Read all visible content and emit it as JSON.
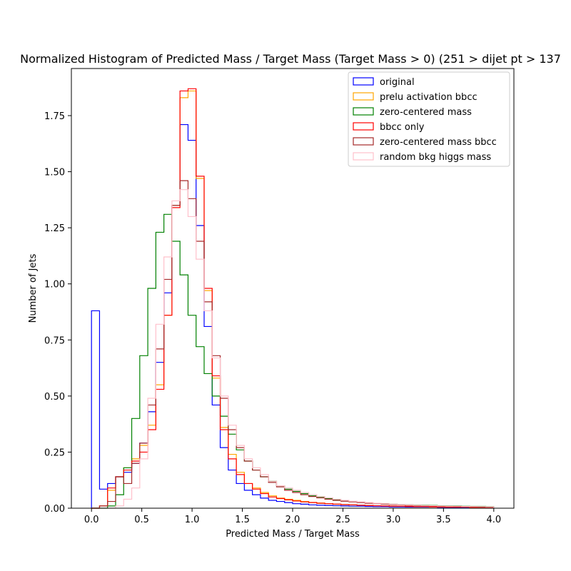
{
  "chart_data": {
    "type": "histogram-step",
    "title": "Normalized Histogram of Predicted Mass / Target Mass (Target Mass > 0) (251 > dijet pt > 137",
    "xlabel": "Predicted Mass / Target Mass",
    "ylabel": "Number of Jets",
    "xlim": [
      -0.2,
      4.2
    ],
    "ylim": [
      0,
      1.96
    ],
    "xticks": [
      0.0,
      0.5,
      1.0,
      1.5,
      2.0,
      2.5,
      3.0,
      3.5,
      4.0
    ],
    "xtick_labels": [
      "0.0",
      "0.5",
      "1.0",
      "1.5",
      "2.0",
      "2.5",
      "3.0",
      "3.5",
      "4.0"
    ],
    "yticks": [
      0.0,
      0.25,
      0.5,
      0.75,
      1.0,
      1.25,
      1.5,
      1.75
    ],
    "ytick_labels": [
      "0.00",
      "0.25",
      "0.50",
      "0.75",
      "1.00",
      "1.25",
      "1.50",
      "1.75"
    ],
    "bin_width": 0.08,
    "bin_edges_start": 0.0,
    "legend_position": "top-right",
    "series": [
      {
        "name": "original",
        "color": "#0000ff",
        "values": [
          0.88,
          0.085,
          0.11,
          0.14,
          0.16,
          0.2,
          0.29,
          0.43,
          0.65,
          0.96,
          1.35,
          1.71,
          1.64,
          1.26,
          0.81,
          0.46,
          0.27,
          0.17,
          0.11,
          0.08,
          0.06,
          0.045,
          0.035,
          0.03,
          0.025,
          0.02,
          0.018,
          0.015,
          0.013,
          0.012,
          0.011,
          0.01,
          0.009,
          0.009,
          0.008,
          0.007,
          0.007,
          0.006,
          0.006,
          0.005,
          0.005,
          0.005,
          0.005,
          0.004,
          0.004,
          0.004,
          0.004,
          0.003,
          0.003,
          0.003
        ]
      },
      {
        "name": "prelu activation bbcc",
        "color": "#ffa500",
        "values": [
          0.0,
          0.01,
          0.08,
          0.14,
          0.18,
          0.22,
          0.28,
          0.37,
          0.55,
          0.86,
          1.35,
          1.83,
          1.86,
          1.47,
          0.97,
          0.58,
          0.36,
          0.24,
          0.16,
          0.11,
          0.09,
          0.07,
          0.055,
          0.045,
          0.04,
          0.035,
          0.03,
          0.026,
          0.023,
          0.02,
          0.018,
          0.016,
          0.015,
          0.013,
          0.012,
          0.011,
          0.01,
          0.009,
          0.009,
          0.008,
          0.007,
          0.007,
          0.006,
          0.006,
          0.005,
          0.005,
          0.005,
          0.004,
          0.004,
          0.004
        ]
      },
      {
        "name": "zero-centered mass",
        "color": "#008000",
        "values": [
          0.0,
          0.0,
          0.01,
          0.06,
          0.18,
          0.4,
          0.68,
          0.98,
          1.23,
          1.31,
          1.19,
          1.04,
          0.86,
          0.72,
          0.6,
          0.5,
          0.41,
          0.33,
          0.26,
          0.21,
          0.17,
          0.14,
          0.12,
          0.1,
          0.085,
          0.075,
          0.065,
          0.055,
          0.048,
          0.043,
          0.038,
          0.034,
          0.03,
          0.027,
          0.024,
          0.022,
          0.02,
          0.018,
          0.016,
          0.015,
          0.014,
          0.013,
          0.012,
          0.011,
          0.01,
          0.01,
          0.009,
          0.008,
          0.008,
          0.007
        ]
      },
      {
        "name": "bbcc only",
        "color": "#ff0000",
        "values": [
          0.0,
          0.01,
          0.09,
          0.14,
          0.17,
          0.21,
          0.25,
          0.35,
          0.53,
          0.86,
          1.34,
          1.86,
          1.87,
          1.48,
          0.98,
          0.59,
          0.35,
          0.22,
          0.15,
          0.11,
          0.085,
          0.065,
          0.05,
          0.043,
          0.037,
          0.032,
          0.028,
          0.025,
          0.022,
          0.02,
          0.018,
          0.016,
          0.015,
          0.013,
          0.012,
          0.011,
          0.01,
          0.009,
          0.009,
          0.008,
          0.007,
          0.007,
          0.006,
          0.006,
          0.005,
          0.005,
          0.005,
          0.004,
          0.004,
          0.004
        ]
      },
      {
        "name": "zero-centered mass bbcc",
        "color": "#a52a2a",
        "values": [
          0.0,
          0.01,
          0.03,
          0.14,
          0.11,
          0.2,
          0.29,
          0.46,
          0.71,
          1.02,
          1.35,
          1.46,
          1.38,
          1.19,
          0.92,
          0.68,
          0.49,
          0.35,
          0.27,
          0.21,
          0.17,
          0.14,
          0.115,
          0.095,
          0.08,
          0.07,
          0.06,
          0.052,
          0.046,
          0.04,
          0.035,
          0.031,
          0.028,
          0.025,
          0.022,
          0.02,
          0.018,
          0.016,
          0.015,
          0.013,
          0.012,
          0.011,
          0.01,
          0.009,
          0.009,
          0.008,
          0.007,
          0.007,
          0.006,
          0.006
        ]
      },
      {
        "name": "random bkg higgs mass",
        "color": "#ffc0cb",
        "values": [
          0.0,
          0.0,
          0.0,
          0.01,
          0.04,
          0.09,
          0.22,
          0.49,
          0.82,
          1.12,
          1.37,
          1.42,
          1.3,
          1.11,
          0.88,
          0.67,
          0.5,
          0.37,
          0.28,
          0.22,
          0.18,
          0.15,
          0.12,
          0.1,
          0.09,
          0.08,
          0.07,
          0.06,
          0.052,
          0.046,
          0.04,
          0.035,
          0.031,
          0.028,
          0.025,
          0.022,
          0.02,
          0.018,
          0.016,
          0.015,
          0.013,
          0.012,
          0.011,
          0.01,
          0.009,
          0.009,
          0.008,
          0.007,
          0.007,
          0.006
        ]
      }
    ]
  }
}
